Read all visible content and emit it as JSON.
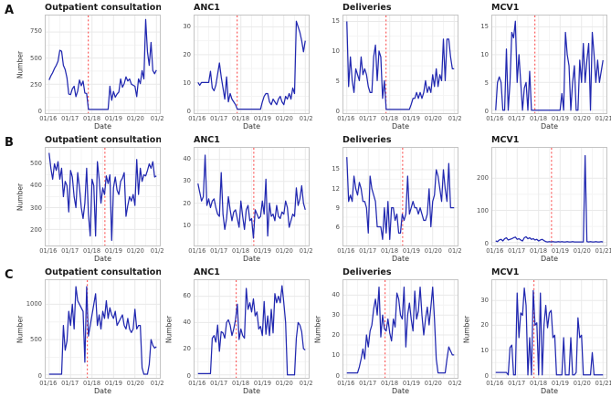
{
  "figure": {
    "rows": [
      "A",
      "B",
      "C"
    ],
    "style": {
      "line_color": "#2128b0",
      "vline_color": "#fb6060",
      "panel_border": "#c4c4c4",
      "grid_major": "#e9e9e9",
      "grid_minor": "#f4f4f4",
      "tick_text": "#4f4f4f",
      "axis_text": "#333333",
      "title_text": "#1a1a1a"
    }
  },
  "chart_data": {
    "type": "line",
    "x_domain": [
      "01/16",
      "01/21"
    ],
    "panels": [
      {
        "row": "A",
        "slug": "a-outpatient",
        "title": "Outpatient consultations",
        "ylabel": "Number",
        "xlabel": "Date",
        "ylim": [
          0,
          880
        ],
        "yticks": [
          0,
          250,
          500,
          750
        ],
        "xticks": [
          "01/16",
          "01/17",
          "01/18",
          "01/19",
          "01/20",
          "01/2"
        ],
        "vline": 0.365,
        "values": [
          290,
          330,
          360,
          400,
          430,
          470,
          575,
          565,
          430,
          390,
          310,
          155,
          150,
          205,
          230,
          130,
          185,
          290,
          235,
          280,
          165,
          160,
          8,
          8,
          8,
          8,
          8,
          8,
          8,
          8,
          8,
          8,
          8,
          8,
          230,
          95,
          180,
          125,
          155,
          175,
          300,
          220,
          255,
          320,
          280,
          300,
          250,
          240,
          230,
          130,
          300,
          255,
          380,
          300,
          870,
          560,
          430,
          650,
          380,
          350,
          385
        ]
      },
      {
        "row": "A",
        "slug": "a-anc1",
        "title": "ANC1",
        "ylabel": "",
        "xlabel": "Date",
        "ylim": [
          0,
          33
        ],
        "yticks": [
          0,
          10,
          20,
          30
        ],
        "xticks": [
          "01/16",
          "01/17",
          "01/18",
          "01/19",
          "01/20",
          "01/2"
        ],
        "vline": 0.365,
        "values": [
          10,
          9,
          10,
          10,
          10,
          10,
          10,
          14,
          8,
          7,
          9,
          13,
          17,
          12,
          8,
          4,
          12,
          3,
          6,
          4,
          3,
          2,
          0.4,
          0.4,
          0.4,
          0.4,
          0.4,
          0.4,
          0.4,
          0.4,
          0.4,
          0.4,
          0.4,
          0.4,
          0.4,
          0.4,
          3,
          5,
          6,
          6,
          3,
          2,
          4,
          3,
          2,
          4,
          5,
          3,
          2,
          5,
          4,
          6,
          4,
          8,
          6,
          32,
          30,
          28,
          25,
          21,
          25
        ]
      },
      {
        "row": "A",
        "slug": "a-deliveries",
        "title": "Deliveries",
        "ylabel": "",
        "xlabel": "Date",
        "ylim": [
          0,
          15.5
        ],
        "yticks": [
          0,
          5,
          10,
          15
        ],
        "xticks": [
          "01/16",
          "01/17",
          "01/18",
          "01/19",
          "01/20",
          "01/2"
        ],
        "vline": 0.365,
        "values": [
          15,
          4,
          9,
          5,
          3,
          7,
          6,
          5,
          9,
          6,
          7,
          6,
          4,
          3,
          3,
          9,
          11,
          5,
          10,
          9,
          2,
          5,
          0.15,
          0.15,
          0.15,
          0.15,
          0.15,
          0.15,
          0.15,
          0.15,
          0.15,
          0.15,
          0.15,
          0.15,
          0.15,
          0.15,
          1,
          2,
          2,
          3,
          2,
          3,
          2,
          3,
          5,
          3,
          4,
          3,
          6,
          4,
          7,
          4,
          6,
          5,
          12,
          5,
          12,
          12,
          9,
          7,
          7
        ]
      },
      {
        "row": "A",
        "slug": "a-mcv1",
        "title": "MCV1",
        "ylabel": "",
        "xlabel": "Date",
        "ylim": [
          0,
          16.5
        ],
        "yticks": [
          0,
          5,
          10,
          15
        ],
        "xticks": [
          "01/16",
          "01/17",
          "01/18",
          "01/19",
          "01/20",
          "01/21"
        ],
        "vline": 0.365,
        "values": [
          0,
          5,
          6,
          5,
          0,
          0,
          11,
          0,
          5,
          14,
          13,
          16,
          5,
          10,
          5,
          0,
          4,
          5,
          0,
          7,
          0,
          0,
          0,
          0,
          0,
          0,
          0,
          0,
          0,
          0,
          0,
          0,
          0,
          0,
          0,
          0,
          0,
          3,
          0,
          14,
          10,
          8,
          0,
          5,
          8,
          0,
          0,
          9,
          5,
          12,
          5,
          9,
          12,
          0,
          14,
          10,
          5,
          9,
          5,
          7,
          9
        ]
      },
      {
        "row": "B",
        "slug": "b-outpatient",
        "title": "Outpatient consultations",
        "ylabel": "Number",
        "xlabel": "Date",
        "ylim": [
          140,
          560
        ],
        "yticks": [
          200,
          300,
          400,
          500
        ],
        "xticks": [
          "01/16",
          "01/17",
          "01/18",
          "01/19",
          "01/20",
          "01/2"
        ],
        "vline": 0.52,
        "values": [
          550,
          480,
          430,
          500,
          470,
          510,
          430,
          480,
          350,
          420,
          400,
          280,
          470,
          440,
          350,
          300,
          460,
          390,
          300,
          250,
          320,
          480,
          270,
          170,
          430,
          400,
          170,
          510,
          430,
          320,
          390,
          360,
          445,
          410,
          450,
          150,
          390,
          440,
          380,
          360,
          420,
          435,
          460,
          260,
          310,
          350,
          330,
          360,
          310,
          520,
          360,
          480,
          420,
          450,
          445,
          470,
          500,
          480,
          510,
          440,
          445
        ]
      },
      {
        "row": "B",
        "slug": "b-anc1",
        "title": "ANC1",
        "ylabel": "",
        "xlabel": "Date",
        "ylim": [
          2,
          44
        ],
        "yticks": [
          10,
          20,
          30,
          40
        ],
        "xticks": [
          "01/16",
          "01/17",
          "01/18",
          "01/19",
          "01/20",
          "01/2"
        ],
        "vline": 0.52,
        "values": [
          29,
          25,
          21,
          23,
          42,
          19,
          22,
          18,
          21,
          22,
          18,
          15,
          14,
          34,
          15,
          8,
          13,
          23,
          17,
          12,
          16,
          17,
          13,
          9,
          21,
          14,
          8,
          17,
          19,
          12,
          13,
          4,
          17,
          15,
          13,
          14,
          21,
          15,
          31,
          5,
          20,
          14,
          15,
          12,
          19,
          14,
          13,
          16,
          15,
          21,
          18,
          9,
          12,
          15,
          14,
          27,
          19,
          22,
          28,
          20,
          17
        ]
      },
      {
        "row": "B",
        "slug": "b-deliveries",
        "title": "Deliveries",
        "ylabel": "",
        "xlabel": "Date",
        "ylim": [
          3.5,
          18
        ],
        "yticks": [
          6,
          9,
          12,
          15
        ],
        "xticks": [
          "01/16",
          "01/17",
          "01/18",
          "01/19",
          "01/20",
          "01/2"
        ],
        "vline": 0.52,
        "values": [
          17,
          10,
          11,
          10,
          14,
          12,
          11,
          13,
          12,
          10,
          10,
          9,
          5,
          14,
          12,
          11,
          10,
          6,
          6,
          6,
          4,
          9,
          5,
          10,
          4,
          9,
          9,
          7,
          8,
          5,
          5,
          8,
          7,
          8,
          14,
          8,
          9,
          10,
          9,
          9,
          8,
          9,
          8,
          7,
          7,
          8,
          12,
          6,
          10,
          11,
          15,
          14,
          12,
          10,
          15,
          12,
          10,
          16,
          9,
          9,
          9
        ]
      },
      {
        "row": "B",
        "slug": "b-mcv1",
        "title": "MCV1",
        "ylabel": "",
        "xlabel": "Date",
        "ylim": [
          0,
          285
        ],
        "yticks": [
          0,
          100,
          200
        ],
        "xticks": [
          "01/16",
          "01/17",
          "01/18",
          "01/19",
          "01/20",
          "01/21"
        ],
        "vline": 0.52,
        "values": [
          5,
          3,
          8,
          10,
          5,
          12,
          15,
          8,
          10,
          12,
          15,
          17,
          10,
          12,
          8,
          5,
          15,
          18,
          12,
          15,
          10,
          12,
          8,
          10,
          5,
          8,
          10,
          6,
          3,
          2,
          3,
          2,
          3,
          2,
          2,
          3,
          2,
          3,
          2,
          2,
          3,
          2,
          2,
          3,
          2,
          2,
          2,
          2,
          2,
          2,
          270,
          3,
          2,
          3,
          2,
          2,
          3,
          2,
          2,
          3,
          2
        ]
      },
      {
        "row": "C",
        "slug": "c-outpatient",
        "title": "Outpatient consultations",
        "ylabel": "Number",
        "xlabel": "Date",
        "ylim": [
          0,
          1300
        ],
        "yticks": [
          0,
          500,
          1000
        ],
        "xticks": [
          "01/16",
          "01/17",
          "01/18",
          "01/19",
          "01/20",
          "01/2"
        ],
        "vline": 0.356,
        "values": [
          10,
          10,
          10,
          10,
          10,
          10,
          10,
          10,
          700,
          350,
          480,
          900,
          700,
          1000,
          650,
          1250,
          1050,
          1000,
          950,
          900,
          180,
          1250,
          550,
          700,
          850,
          1000,
          1150,
          700,
          850,
          650,
          900,
          800,
          1050,
          800,
          950,
          850,
          800,
          900,
          700,
          750,
          800,
          850,
          700,
          650,
          800,
          650,
          600,
          650,
          930,
          650,
          700,
          700,
          100,
          10,
          10,
          10,
          150,
          500,
          420,
          380,
          400
        ]
      },
      {
        "row": "C",
        "slug": "c-anc1",
        "title": "ANC1",
        "ylabel": "Number",
        "xlabel": "Date",
        "ylim": [
          0,
          70
        ],
        "yticks": [
          0,
          20,
          40,
          60
        ],
        "xticks": [
          "01/16",
          "01/17",
          "01/18",
          "01/19",
          "01/20",
          "01/2"
        ],
        "vline": 0.356,
        "values": [
          1,
          1,
          1,
          1,
          1,
          1,
          1,
          1,
          28,
          30,
          25,
          38,
          18,
          33,
          32,
          28,
          40,
          42,
          38,
          30,
          35,
          42,
          54,
          27,
          35,
          30,
          28,
          66,
          50,
          55,
          48,
          58,
          45,
          48,
          35,
          37,
          30,
          56,
          31,
          45,
          30,
          50,
          32,
          62,
          55,
          60,
          55,
          68,
          55,
          40,
          0,
          0,
          0,
          0,
          0,
          28,
          40,
          38,
          33,
          20,
          19
        ]
      },
      {
        "row": "C",
        "slug": "c-deliveries",
        "title": "Deliveries",
        "ylabel": "Number",
        "xlabel": "Date",
        "ylim": [
          0,
          46
        ],
        "yticks": [
          0,
          10,
          20,
          30,
          40
        ],
        "xticks": [
          "01/16",
          "01/17",
          "01/18",
          "01/19",
          "01/20",
          "01/2"
        ],
        "vline": 0.356,
        "values": [
          1,
          1,
          1,
          1,
          1,
          1,
          1,
          4,
          8,
          13,
          8,
          20,
          14,
          22,
          25,
          33,
          38,
          30,
          44,
          19,
          30,
          23,
          22,
          28,
          21,
          17,
          28,
          24,
          41,
          38,
          30,
          28,
          44,
          14,
          30,
          36,
          28,
          22,
          42,
          28,
          32,
          44,
          30,
          20,
          28,
          34,
          25,
          34,
          44,
          28,
          8,
          1,
          1,
          1,
          1,
          1,
          8,
          14,
          12,
          10,
          10
        ]
      },
      {
        "row": "C",
        "slug": "c-mcv1",
        "title": "MCV1",
        "ylabel": "Number",
        "xlabel": "Date",
        "ylim": [
          0,
          37
        ],
        "yticks": [
          0,
          10,
          20,
          30
        ],
        "xticks": [
          "01/16",
          "01/17",
          "01/18",
          "01/19",
          "01/20",
          "01/21"
        ],
        "vline": 0.356,
        "values": [
          1,
          1,
          1,
          1,
          1,
          1,
          1,
          0,
          11,
          12,
          0,
          0,
          33,
          15,
          25,
          24,
          35,
          28,
          0,
          15,
          0,
          34,
          20,
          21,
          0,
          33,
          0,
          20,
          28,
          19,
          25,
          26,
          15,
          16,
          0,
          0,
          0,
          0,
          15,
          0,
          0,
          0,
          15,
          0,
          0,
          1,
          23,
          15,
          16,
          0,
          0,
          0,
          0,
          0,
          9,
          0,
          0,
          0,
          0,
          0,
          0
        ]
      }
    ]
  }
}
